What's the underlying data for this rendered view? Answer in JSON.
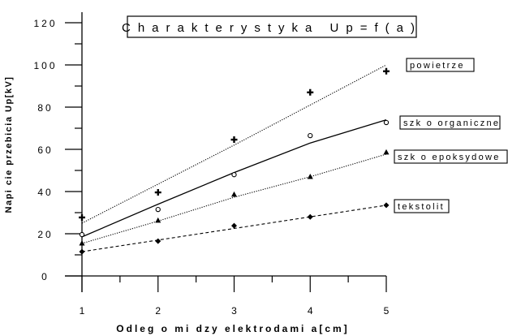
{
  "chart_data": {
    "type": "scatter",
    "title": "Charakterystyka  Up=f(a)",
    "xlabel": "Odleg o   mi dzy elektrodami a[cm]",
    "ylabel": "Napi cie przebicia Up[kV]",
    "xlim": [
      1,
      5
    ],
    "ylim": [
      0,
      120
    ],
    "x_ticks": [
      "1",
      "2",
      "3",
      "4",
      "5"
    ],
    "y_ticks": [
      "0",
      "20",
      "40",
      "60",
      "80",
      "100",
      "120"
    ],
    "grid": false,
    "legend_placement": "right, beside line ends",
    "x": [
      1,
      2,
      3,
      4,
      5
    ],
    "series": [
      {
        "name": "powietrze",
        "marker": "cross",
        "line": "dotted",
        "values": [
          27.7,
          39.6,
          64.6,
          87,
          97
        ],
        "fit": [
          25,
          43.5,
          62,
          81,
          100
        ]
      },
      {
        "name": "szk o organiczne",
        "marker": "circle",
        "line": "solid",
        "values": [
          19.6,
          31.5,
          48,
          66.5,
          72.7
        ],
        "fit": [
          18.5,
          34,
          49,
          63,
          74
        ]
      },
      {
        "name": "szk o epoksydowe",
        "marker": "triangle",
        "line": "dotted",
        "values": [
          15.4,
          26.2,
          38.5,
          46.9,
          58.5
        ],
        "fit": [
          15.4,
          26,
          37.3,
          47,
          57.7
        ]
      },
      {
        "name": "tekstolit",
        "marker": "diamond",
        "line": "dashed",
        "values": [
          11.5,
          16.5,
          23.8,
          28,
          33.5
        ],
        "fit": [
          11.5,
          17,
          22.5,
          28,
          33.5
        ]
      }
    ]
  }
}
